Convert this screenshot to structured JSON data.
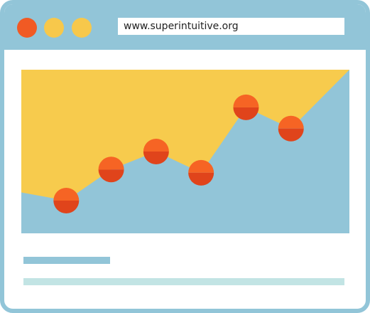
{
  "window": {
    "frame_color": "#92c5d8",
    "dots": [
      {
        "name": "close",
        "color": "#f15a24"
      },
      {
        "name": "minimize",
        "color": "#f7c84b"
      },
      {
        "name": "maximize",
        "color": "#f7c84b"
      }
    ]
  },
  "address_bar": {
    "url": "www.superintuitive.org"
  },
  "chart_data": {
    "type": "line",
    "colors": {
      "background": "#f7cb4d",
      "area": "#92c5d8",
      "point_top": "#f66424",
      "point_bottom": "#e0441b"
    },
    "points": [
      {
        "x": 1,
        "y": 20
      },
      {
        "x": 2,
        "y": 39
      },
      {
        "x": 3,
        "y": 50
      },
      {
        "x": 4,
        "y": 37
      },
      {
        "x": 5,
        "y": 77
      },
      {
        "x": 6,
        "y": 64
      }
    ],
    "area_start": {
      "x": 0,
      "y": 25
    },
    "area_end": {
      "x": 7.3,
      "y": 100
    },
    "xlim": [
      0,
      7.3
    ],
    "ylim": [
      0,
      100
    ]
  },
  "placeholder_lines": {
    "short_color": "#92c5d8",
    "long_color": "#c2e4e4"
  }
}
